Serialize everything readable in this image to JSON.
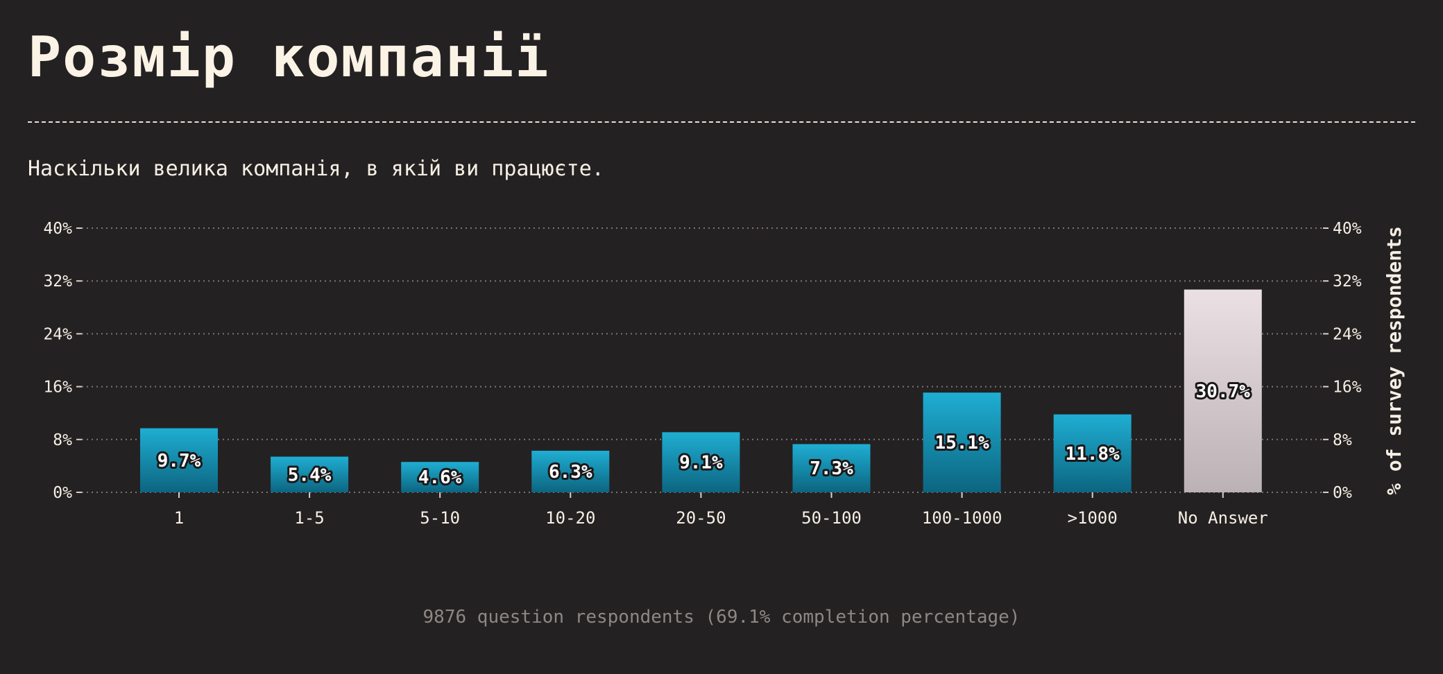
{
  "title": "Розмір компанії",
  "subtitle": "Наскільки велика компанія, в якій ви працюєте.",
  "footer": "9876 question respondents (69.1% completion percentage)",
  "chart_data": {
    "type": "bar",
    "categories": [
      "1",
      "1-5",
      "5-10",
      "10-20",
      "20-50",
      "50-100",
      "100-1000",
      ">1000",
      "No Answer"
    ],
    "values": [
      9.7,
      5.4,
      4.6,
      6.3,
      9.1,
      7.3,
      15.1,
      11.8,
      30.7
    ],
    "value_labels": [
      "9.7%",
      "5.4%",
      "4.6%",
      "6.3%",
      "9.1%",
      "7.3%",
      "15.1%",
      "11.8%",
      "30.7%"
    ],
    "yticks": [
      0,
      8,
      16,
      24,
      32,
      40
    ],
    "ytick_labels": [
      "0%",
      "8%",
      "16%",
      "24%",
      "32%",
      "40%"
    ],
    "ylim": [
      0,
      40
    ],
    "ylabel": "% of survey respondents",
    "xlabel": "",
    "grid": true,
    "y_axis_sides": "both",
    "colors": {
      "bar_top": "#1faed3",
      "bar_bottom": "#0c6580",
      "highlight_top": "#ebe0e3",
      "highlight_bottom": "#bbb2b5",
      "highlight_category": "No Answer",
      "grid": "#7c7774",
      "background": "#242123"
    }
  }
}
